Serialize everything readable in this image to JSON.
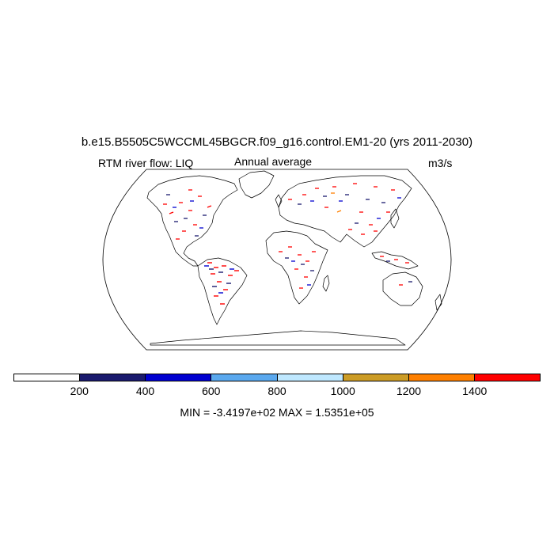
{
  "map": {
    "title": "b.e15.B5505C5WCCML45BGCR.f09_g16.control.EM1-20 (yrs 2011-2030)",
    "variable_label": "RTM river flow: LIQ",
    "average_label": "Annual average",
    "units_label": "m3/s",
    "projection": "Robinson",
    "colorbar": {
      "colors": [
        "#ffffff",
        "#1a1a6e",
        "#0000d0",
        "#5aa8ee",
        "#bfe8ff",
        "#cc9c26",
        "#ff8000",
        "#ff0000"
      ],
      "tick_labels": [
        "200",
        "400",
        "600",
        "800",
        "1000",
        "1200",
        "1400"
      ]
    },
    "minmax_label": "MIN = -3.4197e+02 MAX = 1.5351e+05"
  }
}
